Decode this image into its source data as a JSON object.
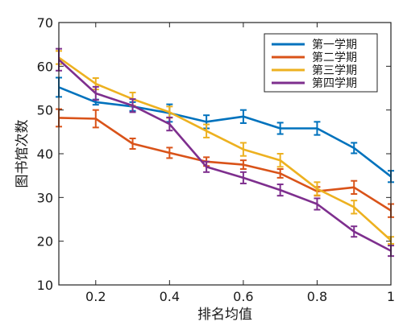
{
  "chart_data": {
    "type": "line",
    "xlabel": "排名均值",
    "ylabel": "图书馆次数",
    "xlim": [
      0.1,
      1.0
    ],
    "ylim": [
      10,
      70
    ],
    "xticks": [
      0.2,
      0.4,
      0.6,
      0.8,
      1
    ],
    "xtick_labels": [
      "0.2",
      "0.4",
      "0.6",
      "0.8",
      "1"
    ],
    "yticks": [
      10,
      20,
      30,
      40,
      50,
      60,
      70
    ],
    "ytick_labels": [
      "10",
      "20",
      "30",
      "40",
      "50",
      "60",
      "70"
    ],
    "grid": false,
    "legend_position": "top-right",
    "x": [
      0.1,
      0.2,
      0.3,
      0.4,
      0.5,
      0.6,
      0.7,
      0.8,
      0.9,
      1.0
    ],
    "series": [
      {
        "name": "第一学期",
        "color": "#0072BD",
        "values": [
          55.2,
          51.8,
          50.8,
          49.3,
          47.3,
          48.5,
          45.8,
          45.8,
          41.3,
          34.8
        ],
        "errors": [
          2.2,
          0.6,
          1.0,
          2.0,
          1.5,
          1.5,
          1.3,
          1.5,
          1.2,
          1.3
        ]
      },
      {
        "name": "第二学期",
        "color": "#D95319",
        "values": [
          48.2,
          48.0,
          42.3,
          40.2,
          38.2,
          37.5,
          35.5,
          31.4,
          32.3,
          27.0
        ],
        "errors": [
          2.0,
          2.0,
          1.2,
          1.2,
          1.0,
          1.0,
          1.0,
          1.0,
          1.5,
          1.5
        ]
      },
      {
        "name": "第三学期",
        "color": "#EDB120",
        "values": [
          62.0,
          56.0,
          52.5,
          49.5,
          45.2,
          41.0,
          38.5,
          32.0,
          27.8,
          20.2
        ],
        "errors": [
          1.5,
          1.3,
          1.5,
          1.3,
          1.5,
          1.5,
          1.5,
          1.5,
          1.5,
          0.8
        ]
      },
      {
        "name": "第四学期",
        "color": "#7E2F8E",
        "values": [
          61.5,
          53.8,
          51.0,
          46.8,
          37.0,
          34.5,
          31.7,
          28.5,
          22.2,
          17.8
        ],
        "errors": [
          2.5,
          1.5,
          1.5,
          1.5,
          1.2,
          1.3,
          1.3,
          1.3,
          1.2,
          1.2
        ]
      }
    ]
  }
}
